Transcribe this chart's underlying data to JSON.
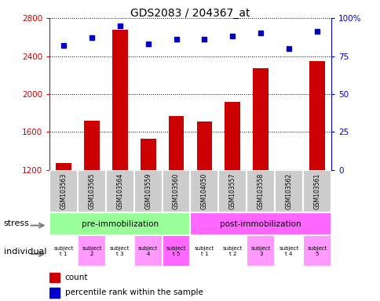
{
  "title": "GDS2083 / 204367_at",
  "samples": [
    "GSM103563",
    "GSM103565",
    "GSM103564",
    "GSM103559",
    "GSM103560",
    "GSM104050",
    "GSM103557",
    "GSM103558",
    "GSM103562",
    "GSM103561"
  ],
  "counts": [
    1270,
    1720,
    2680,
    1530,
    1770,
    1710,
    1920,
    2270,
    1190,
    2350
  ],
  "percentile_ranks": [
    82,
    87,
    95,
    83,
    86,
    86,
    88,
    90,
    80,
    91
  ],
  "ylim_left": [
    1200,
    2800
  ],
  "ylim_right": [
    0,
    100
  ],
  "yticks_left": [
    1200,
    1600,
    2000,
    2400,
    2800
  ],
  "yticks_right": [
    0,
    25,
    50,
    75,
    100
  ],
  "bar_color": "#cc0000",
  "dot_color": "#0000cc",
  "stress_labels": [
    "pre-immobilization",
    "post-immobilization"
  ],
  "stress_colors": [
    "#99ff99",
    "#ff66ff"
  ],
  "stress_pre_count": 5,
  "stress_post_count": 5,
  "individual_labels": [
    "subject\nt 1",
    "subject\n2",
    "subject\nt 3",
    "subject\n4",
    "subject\nt 5",
    "subject\nt 1",
    "subject\nt 2",
    "subject\n3",
    "subject\nt 4",
    "subject\n5"
  ],
  "individual_colors": [
    "#ffffff",
    "#ff99ff",
    "#ffffff",
    "#ff99ff",
    "#ff66ff",
    "#ffffff",
    "#ffffff",
    "#ff99ff",
    "#ffffff",
    "#ff99ff"
  ],
  "legend_count_color": "#cc0000",
  "legend_dot_color": "#0000cc",
  "xlabel_stress": "stress",
  "xlabel_individual": "individual",
  "bg_color": "#ffffff",
  "sample_bg_color": "#cccccc",
  "figsize": [
    4.85,
    3.84
  ],
  "dpi": 100
}
